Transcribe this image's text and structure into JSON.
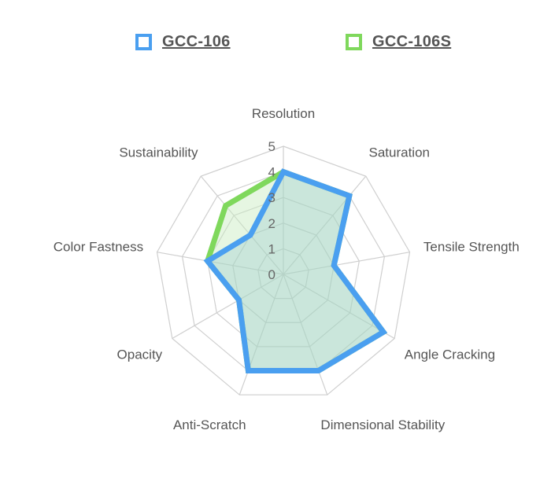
{
  "chart_data": {
    "type": "radar",
    "axes": [
      "Resolution",
      "Saturation",
      "Tensile Strength",
      "Angle Cracking",
      "Dimensional Stability",
      "Anti-Scratch",
      "Opacity",
      "Color Fastness",
      "Sustainability"
    ],
    "rlim": [
      0,
      5
    ],
    "ticks": [
      "0",
      "1",
      "2",
      "3",
      "4",
      "5"
    ],
    "series": [
      {
        "name": "GCC-106",
        "values": [
          4,
          4,
          2,
          4.5,
          4,
          4,
          2,
          3,
          2
        ],
        "color": "#4a9ff0",
        "fill": "rgba(130,190,200,0.28)"
      },
      {
        "name": "GCC-106S",
        "values": [
          4,
          4,
          2,
          4.5,
          4,
          4,
          2,
          3,
          3.5
        ],
        "color": "#7fd85c",
        "fill": "rgba(200,235,190,0.45)"
      }
    ],
    "legend": "top",
    "grid": true
  }
}
